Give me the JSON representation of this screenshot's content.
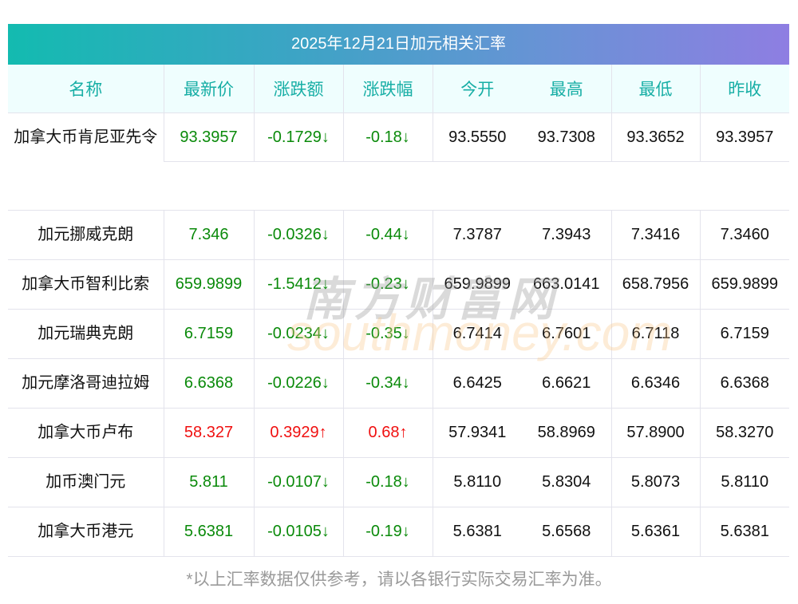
{
  "title": "2025年12月21日加元相关汇率",
  "headers": [
    "名称",
    "最新价",
    "涨跌额",
    "涨跌幅",
    "今开",
    "最高",
    "最低",
    "昨收"
  ],
  "rows": [
    {
      "name": "加拿大币肯尼亚先令",
      "latest": "93.3957",
      "change": "-0.1729↓",
      "pct": "-0.18↓",
      "open": "93.5550",
      "high": "93.7308",
      "low": "93.3652",
      "prev": "93.3957",
      "dir": "down"
    },
    {
      "name": "加元挪威克朗",
      "latest": "7.346",
      "change": "-0.0326↓",
      "pct": "-0.44↓",
      "open": "7.3787",
      "high": "7.3943",
      "low": "7.3416",
      "prev": "7.3460",
      "dir": "down"
    },
    {
      "name": "加拿大币智利比索",
      "latest": "659.9899",
      "change": "-1.5412↓",
      "pct": "-0.23↓",
      "open": "659.9899",
      "high": "663.0141",
      "low": "658.7956",
      "prev": "659.9899",
      "dir": "down"
    },
    {
      "name": "加元瑞典克朗",
      "latest": "6.7159",
      "change": "-0.0234↓",
      "pct": "-0.35↓",
      "open": "6.7414",
      "high": "6.7601",
      "low": "6.7118",
      "prev": "6.7159",
      "dir": "down"
    },
    {
      "name": "加元摩洛哥迪拉姆",
      "latest": "6.6368",
      "change": "-0.0226↓",
      "pct": "-0.34↓",
      "open": "6.6425",
      "high": "6.6621",
      "low": "6.6346",
      "prev": "6.6368",
      "dir": "down"
    },
    {
      "name": "加拿大币卢布",
      "latest": "58.327",
      "change": "0.3929↑",
      "pct": "0.68↑",
      "open": "57.9341",
      "high": "58.8969",
      "low": "57.8900",
      "prev": "58.3270",
      "dir": "up"
    },
    {
      "name": "加币澳门元",
      "latest": "5.811",
      "change": "-0.0107↓",
      "pct": "-0.18↓",
      "open": "5.8110",
      "high": "5.8304",
      "low": "5.8073",
      "prev": "5.8110",
      "dir": "down"
    },
    {
      "name": "加拿大币港元",
      "latest": "5.6381",
      "change": "-0.0105↓",
      "pct": "-0.19↓",
      "open": "5.6381",
      "high": "5.6568",
      "low": "5.6361",
      "prev": "5.6381",
      "dir": "down"
    }
  ],
  "watermark": {
    "cn": "南方财富网",
    "en": "southmoney.com"
  },
  "footer": "*以上汇率数据仅供参考，请以各银行实际交易汇率为准。"
}
